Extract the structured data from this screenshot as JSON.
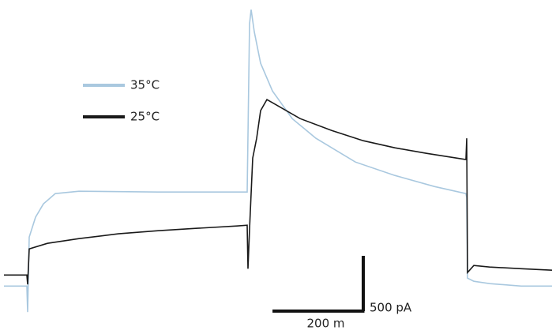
{
  "chart_data": {
    "type": "line",
    "xlim": [
      0,
      1216.3
    ],
    "ylim": [
      -491,
      2500
    ],
    "scale_bars": {
      "x": {
        "value": 200,
        "label": "200 m"
      },
      "y": {
        "value": 500,
        "label": "500 pA"
      }
    },
    "series": [
      {
        "name": "35°C",
        "color": "#a9c8df",
        "x": [
          8.7,
          59.2,
          60.9,
          64.4,
          78.3,
          95.7,
          121.8,
          174,
          348,
          544.6,
          549.8,
          553.3,
          560.3,
          574.2,
          600.3,
          643.8,
          696,
          783,
          870,
          957,
          1026.6,
          1028.3,
          1030.1,
          1044,
          1078.8,
          1148.4,
          1216.3
        ],
        "values": [
          -86,
          -86,
          -321,
          357,
          536,
          657,
          750,
          771,
          764,
          764,
          2285,
          2413,
          2213,
          1928,
          1678,
          1428,
          1250,
          1035,
          914,
          814,
          750,
          714,
          -14,
          -43,
          -64,
          -86,
          -86
        ]
      },
      {
        "name": "25°C",
        "color": "#1a1a1a",
        "x": [
          8.7,
          59.2,
          60.9,
          64.4,
          104.4,
          174,
          261,
          348,
          435,
          522,
          544.6,
          546.4,
          549.8,
          556.8,
          565.5,
          574.2,
          588.1,
          600.3,
          661.2,
          730.8,
          800.4,
          870,
          939.6,
          1026.6,
          1028.3,
          1030.1,
          1044,
          1078.8,
          1148.4,
          1216.3
        ],
        "values": [
          14,
          14,
          -71,
          250,
          300,
          343,
          386,
          414,
          436,
          457,
          464,
          71,
          428,
          1071,
          1250,
          1500,
          1600,
          1571,
          1428,
          1321,
          1228,
          1164,
          1114,
          1057,
          1250,
          36,
          100,
          86,
          71,
          57
        ]
      }
    ]
  }
}
